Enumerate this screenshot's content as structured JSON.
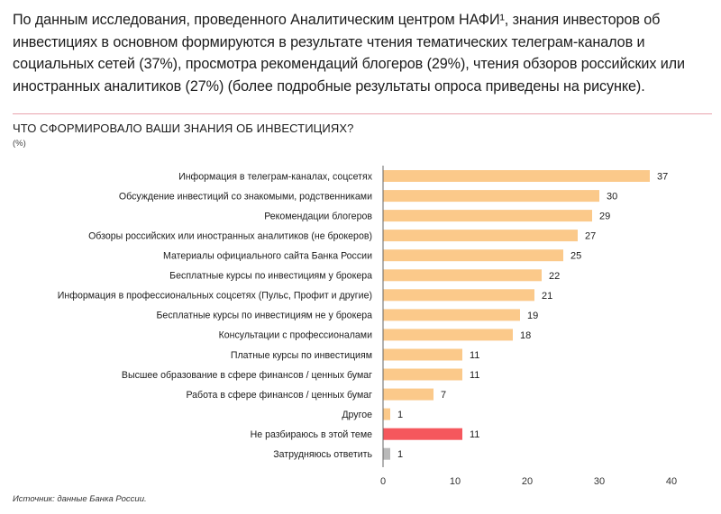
{
  "intro_text": "По данным исследования, проведенного Аналитическим центром НАФИ¹, знания инвесторов об инвестициях в основном формируются в результате чтения тематических телеграм-каналов и социальных сетей (37%), просмотра рекомендаций блогеров (29%), чтения обзоров российских или иностранных аналитиков (27%) (более подробные результаты опроса приведены на рисунке).",
  "source_text": "Источник: данные Банка России.",
  "colors": {
    "bar_default": "#fbc98a",
    "bar_highlight": "#f5575d",
    "bar_muted": "#b9b9b9",
    "axis": "#666666",
    "divider": "#e8a3ad"
  },
  "chart_data": {
    "type": "bar",
    "orientation": "horizontal",
    "title": "ЧТО СФОРМИРОВАЛО ВАШИ ЗНАНИЯ ОБ ИНВЕСТИЦИЯХ?",
    "unit": "(%)",
    "categories": [
      "Информация в телеграм-каналах, соцсетях",
      "Обсуждение инвестиций со знакомыми, родственниками",
      "Рекомендации блогеров",
      "Обзоры российских или иностранных аналитиков (не брокеров)",
      "Материалы официального сайта Банка России",
      "Бесплатные курсы по инвестициям у брокера",
      "Информация в профессиональных соцсетях (Пульс, Профит и другие)",
      "Бесплатные курсы по инвестициям не у брокера",
      "Консультации с профессионалами",
      "Платные курсы по инвестициям",
      "Высшее образование в сфере финансов / ценных бумаг",
      "Работа в сфере финансов / ценных бумаг",
      "Другое",
      "Не разбираюсь в этой теме",
      "Затрудняюсь ответить"
    ],
    "values": [
      37,
      30,
      29,
      27,
      25,
      22,
      21,
      19,
      18,
      11,
      11,
      7,
      1,
      11,
      1
    ],
    "value_labels": [
      "37",
      "30",
      "29",
      "27",
      "25",
      "22",
      "21",
      "19",
      "18",
      "11",
      "11",
      "7",
      "1",
      "11",
      "1"
    ],
    "bar_color_keys": [
      "bar_default",
      "bar_default",
      "bar_default",
      "bar_default",
      "bar_default",
      "bar_default",
      "bar_default",
      "bar_default",
      "bar_default",
      "bar_default",
      "bar_default",
      "bar_default",
      "bar_default",
      "bar_highlight",
      "bar_muted"
    ],
    "xlim": [
      0,
      40
    ],
    "xticks": [
      "0",
      "10",
      "20",
      "30",
      "40"
    ],
    "xtick_values": [
      0,
      10,
      20,
      30,
      40
    ],
    "grid": false,
    "legend": "none"
  }
}
